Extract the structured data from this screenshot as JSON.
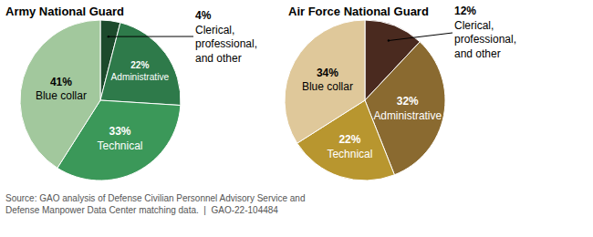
{
  "chart_data": [
    {
      "type": "pie",
      "title": "Army National Guard",
      "categories": [
        "Clerical, professional, and other",
        "Administrative",
        "Technical",
        "Blue collar"
      ],
      "values": [
        4,
        22,
        33,
        41
      ],
      "value_labels": [
        "4%",
        "22%",
        "33%",
        "41%"
      ],
      "colors": [
        "#1d4a2c",
        "#2e7a4a",
        "#3b9859",
        "#a2c89d"
      ],
      "data_labels": true
    },
    {
      "type": "pie",
      "title": "Air Force National Guard",
      "categories": [
        "Clerical, professional, and other",
        "Administrative",
        "Technical",
        "Blue collar"
      ],
      "values": [
        12,
        32,
        22,
        34
      ],
      "value_labels": [
        "12%",
        "32%",
        "22%",
        "34%"
      ],
      "colors": [
        "#4a2a1f",
        "#8a6a30",
        "#b8962f",
        "#dfc89a"
      ],
      "data_labels": true
    }
  ],
  "source": [
    "Source: GAO analysis of Defense Civilian Personnel Advisory Service and",
    "Defense Manpower Data Center matching data.  |  GAO-22-104484"
  ]
}
